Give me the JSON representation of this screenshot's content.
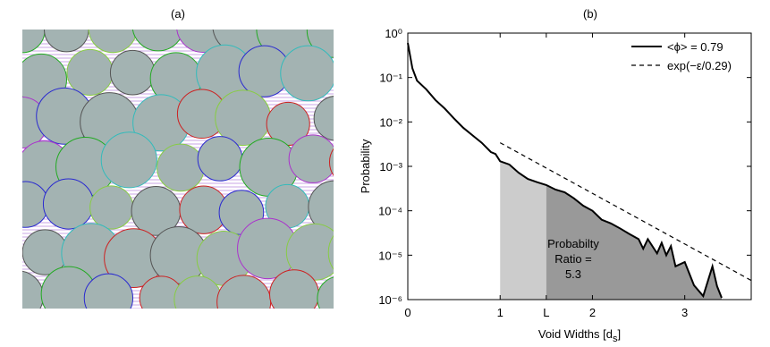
{
  "panel_a": {
    "title": "(a)"
  },
  "chart_data": {
    "type": "line",
    "title": "(b)",
    "xlabel": {
      "text": "Void Widths [d",
      "sub": "s",
      "end": "]"
    },
    "ylabel": "Probability",
    "ylog": true,
    "xlim": [
      0,
      3.72
    ],
    "ylim": [
      1e-06,
      1
    ],
    "xticks": [
      0,
      1,
      {
        "value": 1.5,
        "label": "L"
      },
      2,
      3
    ],
    "yticks": [
      {
        "value": 1e-06,
        "label": "10⁻⁶"
      },
      {
        "value": 1e-05,
        "label": "10⁻⁵"
      },
      {
        "value": 0.0001,
        "label": "10⁻⁴"
      },
      {
        "value": 0.001,
        "label": "10⁻³"
      },
      {
        "value": 0.01,
        "label": "10⁻²"
      },
      {
        "value": 0.1,
        "label": "10⁻¹"
      },
      {
        "value": 1,
        "label": "10⁰"
      }
    ],
    "legend": "upper right",
    "series": [
      {
        "name": "<ϕ> = 0.79",
        "color": "#000000",
        "dash": false,
        "x": [
          0,
          0.05,
          0.1,
          0.2,
          0.3,
          0.4,
          0.5,
          0.6,
          0.7,
          0.8,
          0.9,
          0.95,
          1.0,
          1.1,
          1.2,
          1.3,
          1.4,
          1.5,
          1.6,
          1.7,
          1.8,
          1.9,
          2.0,
          2.1,
          2.2,
          2.3,
          2.4,
          2.5,
          2.55,
          2.6,
          2.7,
          2.75,
          2.8,
          2.85,
          2.9,
          3.0,
          3.1,
          3.2,
          3.3,
          3.35,
          3.4
        ],
        "values": [
          0.6,
          0.16,
          0.085,
          0.054,
          0.031,
          0.02,
          0.012,
          0.0074,
          0.005,
          0.0034,
          0.0021,
          0.0019,
          0.0013,
          0.0011,
          0.00072,
          0.00052,
          0.00044,
          0.00038,
          0.0003,
          0.00026,
          0.00019,
          0.00013,
          0.0001,
          6.3e-05,
          5.2e-05,
          4e-05,
          3e-05,
          2.3e-05,
          1.4e-05,
          2.3e-05,
          1.1e-05,
          1.9e-05,
          1e-05,
          1.6e-05,
          5.6e-06,
          7e-06,
          2.1e-06,
          1.2e-06,
          5.6e-06,
          2e-06,
          1.1e-06
        ]
      },
      {
        "name": "exp(−ε/0.29)",
        "color": "#000000",
        "dash": true,
        "x": [
          1,
          3.72
        ],
        "values": [
          0.0034,
          2.7e-06
        ]
      }
    ],
    "shading": [
      {
        "from": 1,
        "to": 1.5,
        "color": "#cccccc"
      },
      {
        "from": 1.5,
        "to": 3.72,
        "color": "#999999"
      }
    ],
    "annotation": [
      "Probabilty",
      "Ratio =",
      "5.3"
    ]
  }
}
